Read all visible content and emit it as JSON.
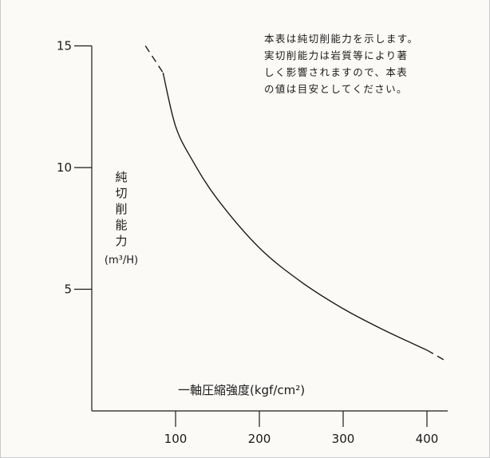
{
  "chart_data": {
    "type": "line",
    "xlabel": "一軸圧縮強度(kgf/cm²)",
    "ylabel": "純切削能力",
    "yunit": "(m³/H)",
    "xlim": [
      0,
      420
    ],
    "ylim": [
      0,
      15
    ],
    "xticks": [
      "100",
      "200",
      "300",
      "400"
    ],
    "yticks": [
      "5",
      "10",
      "15"
    ],
    "grid": false,
    "series": [
      {
        "solid": {
          "x": [
            85,
            100,
            120,
            150,
            200,
            250,
            300,
            350,
            400
          ],
          "y": [
            13.9,
            11.7,
            10.3,
            8.7,
            6.7,
            5.3,
            4.2,
            3.3,
            2.5
          ]
        },
        "dashed_start": {
          "x": [
            64,
            85
          ],
          "y": [
            15.0,
            13.9
          ]
        },
        "dashed_end": {
          "x": [
            400,
            420
          ],
          "y": [
            2.5,
            2.1
          ]
        }
      }
    ],
    "note": [
      "本表は純切削能力を示します。",
      "実切削能力は岩質等により著",
      "しく影響されますので、本表",
      "の値は目安としてください。"
    ]
  }
}
